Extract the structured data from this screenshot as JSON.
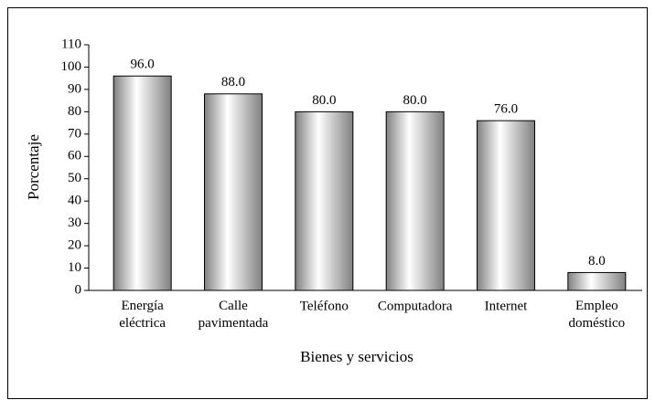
{
  "chart_data": {
    "type": "bar",
    "categories": [
      "Energía eléctrica",
      "Calle pavimentada",
      "Teléfono",
      "Computadora",
      "Internet",
      "Empleo doméstico"
    ],
    "values": [
      96,
      88,
      80,
      80,
      76,
      8
    ],
    "value_labels": [
      "96.0",
      "88.0",
      "80.0",
      "80.0",
      "76.0",
      "8.0"
    ],
    "color": "#808080",
    "xlabel": "Bienes y servicios",
    "ylabel": "Porcentaje",
    "ylim": [
      0,
      110
    ],
    "yticks": [
      0,
      10,
      20,
      30,
      40,
      50,
      60,
      70,
      80,
      90,
      100,
      110
    ],
    "grid": false
  }
}
